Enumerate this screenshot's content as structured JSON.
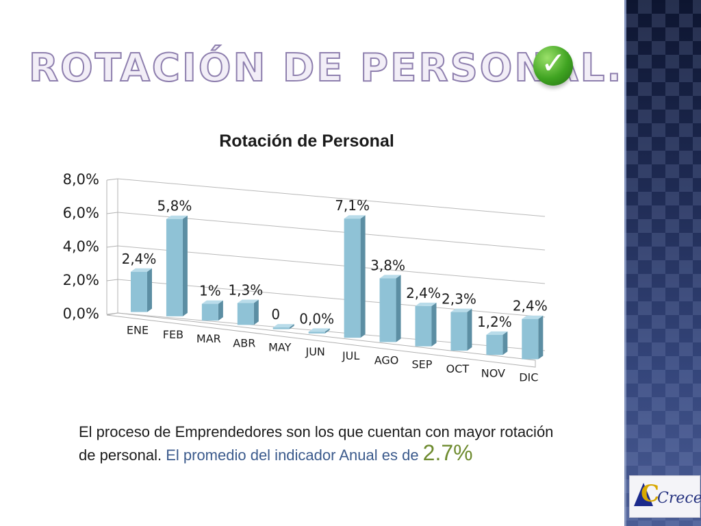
{
  "slide": {
    "title": "Rotación de personal.",
    "caption_part1": "El proceso de Emprendedores  son los que cuentan con mayor rotación de personal.",
    "caption_part2": " El promedio del indicador Anual es de ",
    "caption_value": "2.7",
    "caption_unit": "%",
    "logo_text": "Crece"
  },
  "colors": {
    "bar_face": "#8fc2d6",
    "bar_side": "#5c8ea3",
    "bar_top": "#b9dcea",
    "title_outline": "#8e7fae",
    "accent_blue": "#3b5a8c",
    "accent_green": "#6e8b2f"
  },
  "chart_data": {
    "type": "bar",
    "title": "Rotación de Personal",
    "categories": [
      "ENE",
      "FEB",
      "MAR",
      "ABR",
      "MAY",
      "JUN",
      "JUL",
      "AGO",
      "SEP",
      "OCT",
      "NOV",
      "DIC"
    ],
    "values": [
      2.4,
      5.8,
      1.0,
      1.3,
      0,
      0.0,
      7.1,
      3.8,
      2.4,
      2.3,
      1.2,
      2.4
    ],
    "data_labels": [
      "2,4%",
      "5,8%",
      "1%",
      "1,3%",
      "0",
      "0,0%",
      "7,1%",
      "3,8%",
      "2,4%",
      "2,3%",
      "1,2%",
      "2,4%"
    ],
    "yticks": [
      "0,0%",
      "2,0%",
      "4,0%",
      "6,0%",
      "8,0%"
    ],
    "ylim": [
      0,
      8
    ],
    "grid": true,
    "legend": "none",
    "style": "3d-perspective-columns"
  }
}
